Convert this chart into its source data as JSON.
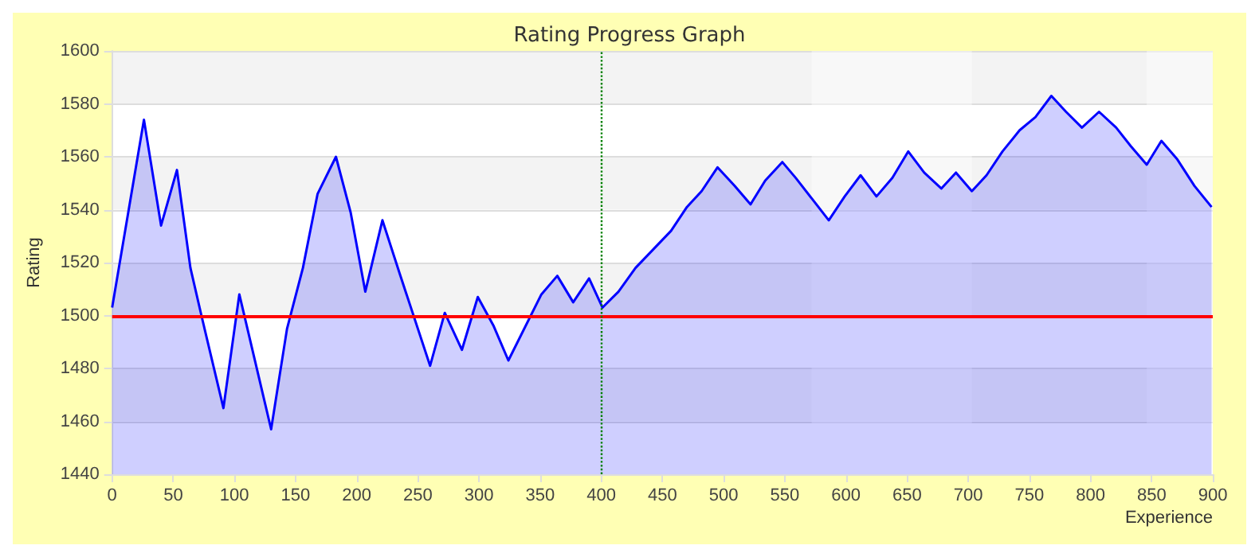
{
  "chart_data": {
    "type": "area",
    "title": "Rating Progress Graph",
    "xlabel": "Experience",
    "ylabel": "Rating",
    "x": [
      0,
      26,
      40,
      53,
      64,
      73,
      91,
      104,
      130,
      143,
      156,
      168,
      183,
      195,
      207,
      221,
      235,
      260,
      272,
      286,
      299,
      312,
      324,
      351,
      364,
      377,
      390,
      401,
      414,
      428,
      457,
      470,
      482,
      495,
      509,
      522,
      534,
      548,
      559,
      586,
      599,
      612,
      625,
      638,
      651,
      664,
      678,
      690,
      703,
      715,
      728,
      742,
      755,
      768,
      780,
      793,
      807,
      821,
      833,
      846,
      858,
      871,
      885,
      899
    ],
    "series": [
      {
        "color": "#0000ff",
        "values": [
          1503,
          1574,
          1534,
          1555,
          1518,
          1500,
          1465,
          1508,
          1457,
          1495,
          1518,
          1546,
          1560,
          1539,
          1509,
          1536,
          1516,
          1481,
          1501,
          1487,
          1507,
          1496,
          1483,
          1508,
          1515,
          1505,
          1514,
          1503,
          1509,
          1518,
          1532,
          1541,
          1547,
          1556,
          1549,
          1542,
          1551,
          1558,
          1552,
          1536,
          1545,
          1553,
          1545,
          1552,
          1562,
          1554,
          1548,
          1554,
          1547,
          1553,
          1562,
          1570,
          1575,
          1583,
          1577,
          1571,
          1577,
          1571,
          1564,
          1557,
          1566,
          1559,
          1549,
          1541
        ]
      }
    ],
    "xlim": [
      0,
      900
    ],
    "xticks": [
      0,
      50,
      100,
      150,
      200,
      250,
      300,
      350,
      400,
      450,
      500,
      550,
      600,
      650,
      700,
      750,
      800,
      850,
      900
    ],
    "ylim": [
      1440,
      1600
    ],
    "yticks": [
      1440,
      1460,
      1480,
      1500,
      1520,
      1540,
      1560,
      1580,
      1600
    ],
    "grid": "y",
    "ref_lines": [
      {
        "axis": "y",
        "value": 1500,
        "color": "#ff0000",
        "line_style": "solid"
      },
      {
        "axis": "x",
        "value": 400,
        "color": "#008000",
        "line_style": "dotted"
      }
    ],
    "bands": [
      {
        "axis": "x",
        "from": 572,
        "to": 703,
        "color": "#ffffff"
      },
      {
        "axis": "x",
        "from": 846,
        "to": 900,
        "color": "#ffffff"
      }
    ]
  }
}
